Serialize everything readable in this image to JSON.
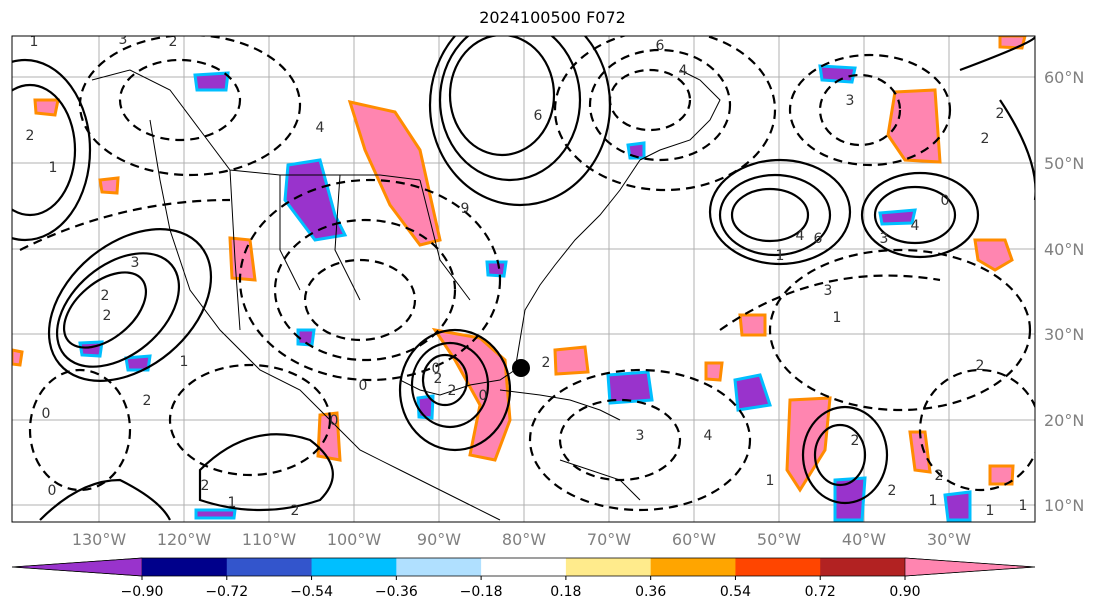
{
  "title": "2024100500 F072",
  "lon_labels": [
    "130°W",
    "120°W",
    "110°W",
    "100°W",
    "90°W",
    "80°W",
    "70°W",
    "60°W",
    "50°W",
    "40°W",
    "30°W"
  ],
  "lat_labels": [
    "60°N",
    "50°N",
    "40°N",
    "30°N",
    "20°N",
    "10°N"
  ],
  "colorbar": {
    "ticks": [
      "−0.90",
      "−0.72",
      "−0.54",
      "−0.36",
      "−0.18",
      "0.18",
      "0.36",
      "0.54",
      "0.72",
      "0.90"
    ],
    "colors": [
      "#9933cc",
      "#00008b",
      "#3355cc",
      "#00bfff",
      "#b0e0ff",
      "#ffffff",
      "#ffeb8c",
      "#ffa500",
      "#ff4500",
      "#b22222",
      "#ff85b0"
    ]
  },
  "contour_labels": [
    "1",
    "3",
    "2",
    "6",
    "4",
    "3",
    "2",
    "6",
    "4",
    "2",
    "4",
    "2",
    "1",
    "9",
    "4",
    "6",
    "3",
    "3",
    "2",
    "2",
    "1",
    "0",
    "2",
    "0",
    "2",
    "1",
    "2",
    "0",
    "0",
    "2",
    "2",
    "0",
    "0",
    "2",
    "3",
    "4",
    "1",
    "2",
    "2",
    "1",
    "1",
    "2",
    "0",
    "1",
    "1",
    "3",
    "2",
    "1"
  ],
  "colors": {
    "negative_fill": "#ff85b0",
    "positive_fill": "#9933cc",
    "grid": "#b0b0b0"
  }
}
